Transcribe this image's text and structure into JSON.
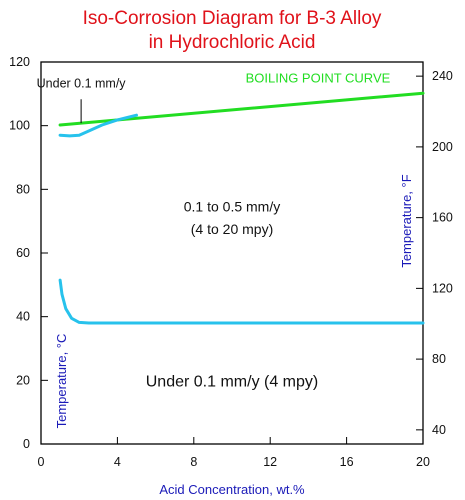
{
  "chart_data": {
    "type": "line",
    "title": "Iso-Corrosion Diagram for B-3 Alloy",
    "subtitle": "in Hydrochloric Acid",
    "xlabel": "Acid Concentration, wt.%",
    "ylabel": "Temperature, °C",
    "y2label": "Temperature, °F",
    "xlim": [
      0,
      20
    ],
    "ylim": [
      0,
      120
    ],
    "y2lim": [
      32,
      248
    ],
    "x_ticks": [
      0,
      4,
      8,
      12,
      16,
      20
    ],
    "y_ticks": [
      0,
      20,
      40,
      60,
      80,
      100,
      120
    ],
    "y2_ticks": [
      40,
      80,
      120,
      160,
      200,
      240
    ],
    "grid": false,
    "series": [
      {
        "name": "BOILING POINT CURVE",
        "color": "#22dd22",
        "x": [
          1,
          20
        ],
        "y": [
          100.2,
          110.2
        ]
      },
      {
        "color": "#27c2ec",
        "x": [
          1,
          1.5,
          2,
          2.6,
          3.2,
          4,
          5
        ],
        "y": [
          97,
          96.8,
          97,
          98.6,
          100.2,
          101.8,
          103.3
        ]
      },
      {
        "color": "#27c2ec",
        "x": [
          1,
          1.1,
          1.3,
          1.6,
          2,
          2.5,
          20
        ],
        "y": [
          51.5,
          47,
          42.5,
          39.5,
          38.2,
          38,
          38
        ]
      }
    ],
    "annotations": [
      {
        "text": "Under 0.1 mm/y",
        "x": 2.1,
        "y": 112
      },
      {
        "text": "0.1 to 0.5 mm/y",
        "x": 10,
        "y": 73
      },
      {
        "text": "(4 to 20 mpy)",
        "x": 10,
        "y": 66
      },
      {
        "text": "Under 0.1 mm/y (4 mpy)",
        "x": 10,
        "y": 18
      }
    ]
  },
  "colors": {
    "title": "#e0121a",
    "axis_label": "#1a1ab8",
    "boiling_curve": "#22dd22",
    "iso_curve": "#27c2ec",
    "frame": "#000000"
  }
}
